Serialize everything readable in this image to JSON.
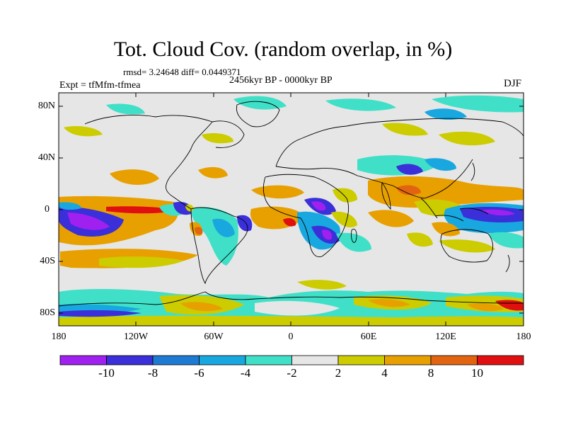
{
  "figure": {
    "title": "Tot. Cloud Cov. (random overlap, in %)",
    "stats": "rmsd= 3.24648 diff= 0.0449371",
    "period": "2456kyr BP - 0000kyr BP",
    "experiment": "Expt = tfMfm-tfmea",
    "season": "DJF"
  },
  "axes": {
    "lat_labels": [
      "80N",
      "40N",
      "0",
      "40S",
      "80S"
    ],
    "lon_labels": [
      "180",
      "120W",
      "60W",
      "0",
      "60E",
      "120E",
      "180"
    ]
  },
  "colorbar": {
    "labels": [
      "-10",
      "-8",
      "-6",
      "-4",
      "-2",
      "2",
      "4",
      "8",
      "10"
    ],
    "colors": [
      "#a020f0",
      "#3a2fd8",
      "#1e7ad2",
      "#18a8df",
      "#40e0c8",
      "#e6e6e6",
      "#cccc00",
      "#e8a000",
      "#e26410",
      "#e01010"
    ]
  },
  "map_colors": {
    "neutral": "#e6e6e6",
    "purple": "#a020f0",
    "blue_dark": "#3a2fd8",
    "blue": "#1e7ad2",
    "sky": "#18a8df",
    "cyan": "#40e0c8",
    "olive": "#cccc00",
    "orange": "#e8a000",
    "red_orange": "#e26410",
    "red": "#e01010"
  }
}
